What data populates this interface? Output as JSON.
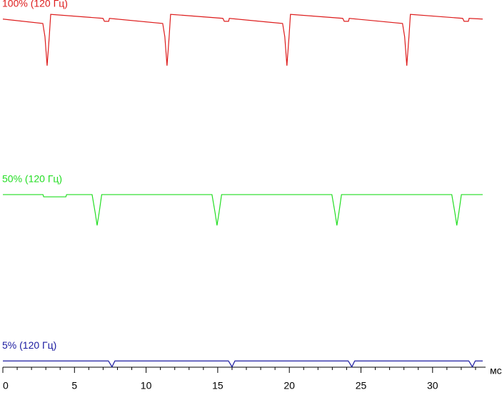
{
  "chart_data": {
    "type": "line",
    "x_label": "мс",
    "xlim": [
      0,
      33.7
    ],
    "xticks": [
      0,
      5,
      10,
      15,
      20,
      25,
      30
    ],
    "xminorticks": [
      1,
      2,
      3,
      4,
      6,
      7,
      8,
      9,
      11,
      12,
      13,
      14,
      16,
      17,
      18,
      19,
      21,
      22,
      23,
      24,
      26,
      27,
      28,
      29,
      31,
      32,
      33
    ],
    "ylim": [
      0,
      100
    ],
    "series": [
      {
        "name": "100% (120 Гц)",
        "color": "#dd1c1c",
        "x": [
          0,
          2.79,
          2.94,
          3.09,
          3.24,
          3.34,
          6.99,
          7.09,
          7.39,
          7.44,
          11.16,
          11.31,
          11.46,
          11.61,
          11.71,
          15.36,
          15.46,
          15.76,
          15.81,
          19.53,
          19.68,
          19.83,
          19.98,
          20.08,
          23.73,
          23.83,
          24.13,
          24.18,
          27.9,
          28.05,
          28.2,
          28.35,
          28.45,
          32.1,
          32.2,
          32.5,
          32.55,
          33.5
        ],
        "values": [
          94.8,
          93.6,
          90,
          82.1,
          90,
          96.1,
          95,
          94.2,
          94.2,
          95,
          93.6,
          90,
          82.1,
          90,
          96.1,
          95,
          94.2,
          94.2,
          95,
          93.6,
          90,
          82.1,
          90,
          96.1,
          95,
          94.2,
          94.2,
          95,
          93.6,
          90,
          82.1,
          90,
          96.1,
          95,
          94.2,
          94.2,
          95,
          94.8
        ]
      },
      {
        "name": "50% (120 Гц)",
        "color": "#22dd22",
        "x": [
          0,
          2.8,
          2.85,
          4.4,
          4.45,
          6.23,
          6.45,
          6.58,
          6.72,
          6.9,
          14.6,
          14.82,
          14.95,
          15.09,
          15.27,
          22.97,
          23.19,
          23.32,
          23.46,
          23.64,
          31.34,
          31.56,
          31.69,
          31.83,
          32.01,
          33.5
        ],
        "values": [
          47,
          47,
          46.4,
          46.4,
          47,
          47,
          42,
          38.6,
          42,
          47,
          47,
          42,
          38.6,
          42,
          47,
          47,
          42,
          38.6,
          42,
          47,
          47,
          42,
          38.6,
          42,
          47,
          47
        ]
      },
      {
        "name": "5% (120 Гц)",
        "color": "#1a1aa0",
        "x": [
          0,
          7.37,
          7.62,
          7.82,
          15.75,
          16,
          16.2,
          24.11,
          24.36,
          24.56,
          32.53,
          32.78,
          32.98,
          33.5
        ],
        "values": [
          1.7,
          1.7,
          0.1,
          1.7,
          1.7,
          0.1,
          1.7,
          1.7,
          0.1,
          1.7,
          1.7,
          0.1,
          1.7,
          1.7
        ]
      }
    ]
  }
}
